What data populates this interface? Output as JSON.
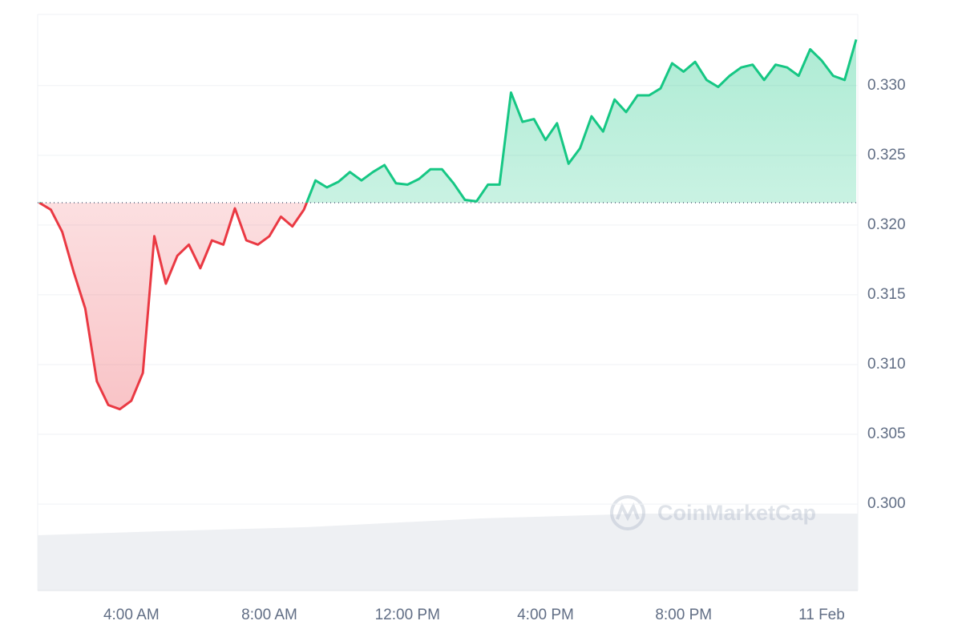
{
  "chart_data": {
    "type": "line",
    "watermark": "CoinMarketCap",
    "categories": [
      null,
      null,
      null,
      null,
      null,
      null,
      null,
      null,
      "4:00 AM",
      null,
      null,
      null,
      null,
      null,
      null,
      null,
      null,
      null,
      null,
      null,
      "8:00 AM",
      null,
      null,
      null,
      null,
      null,
      null,
      null,
      null,
      null,
      null,
      null,
      "12:00 PM",
      null,
      null,
      null,
      null,
      null,
      null,
      null,
      null,
      null,
      null,
      null,
      "4:00 PM",
      null,
      null,
      null,
      null,
      null,
      null,
      null,
      null,
      null,
      null,
      null,
      "8:00 PM",
      null,
      null,
      null,
      null,
      null,
      null,
      null,
      null,
      null,
      null,
      null,
      "11 Feb",
      null,
      null,
      null
    ],
    "values": [
      0.3216,
      0.3211,
      0.3195,
      0.3166,
      0.314,
      0.3088,
      0.3071,
      0.3068,
      0.3074,
      0.3094,
      0.3192,
      0.3158,
      0.3178,
      0.3186,
      0.3169,
      0.3189,
      0.3186,
      0.3212,
      0.3189,
      0.3186,
      0.3192,
      0.3206,
      0.3199,
      0.3211,
      0.3232,
      0.3227,
      0.3231,
      0.3238,
      0.3232,
      0.3238,
      0.3243,
      0.323,
      0.3229,
      0.3233,
      0.324,
      0.324,
      0.323,
      0.3218,
      0.3217,
      0.3229,
      0.3229,
      0.3295,
      0.3274,
      0.3276,
      0.3261,
      0.3273,
      0.3244,
      0.3255,
      0.3278,
      0.3267,
      0.329,
      0.3281,
      0.3293,
      0.3293,
      0.3298,
      0.3316,
      0.331,
      0.3317,
      0.3304,
      0.3299,
      0.3307,
      0.3313,
      0.3315,
      0.3304,
      0.3315,
      0.3313,
      0.3307,
      0.3326,
      0.3318,
      0.3307,
      0.3304,
      0.3333
    ],
    "baseline": 0.3216,
    "up_color": "#16c784",
    "down_color": "#ea3943",
    "ylim": [
      0.2938,
      0.3351
    ],
    "yticks": [
      {
        "value": 0.3,
        "label": "0.300"
      },
      0.305,
      {
        "value": 0.31,
        "label": "0.310"
      },
      0.315,
      {
        "value": 0.32,
        "label": "0.320"
      },
      0.325,
      {
        "value": 0.33,
        "label": "0.330"
      }
    ],
    "grid": true
  }
}
